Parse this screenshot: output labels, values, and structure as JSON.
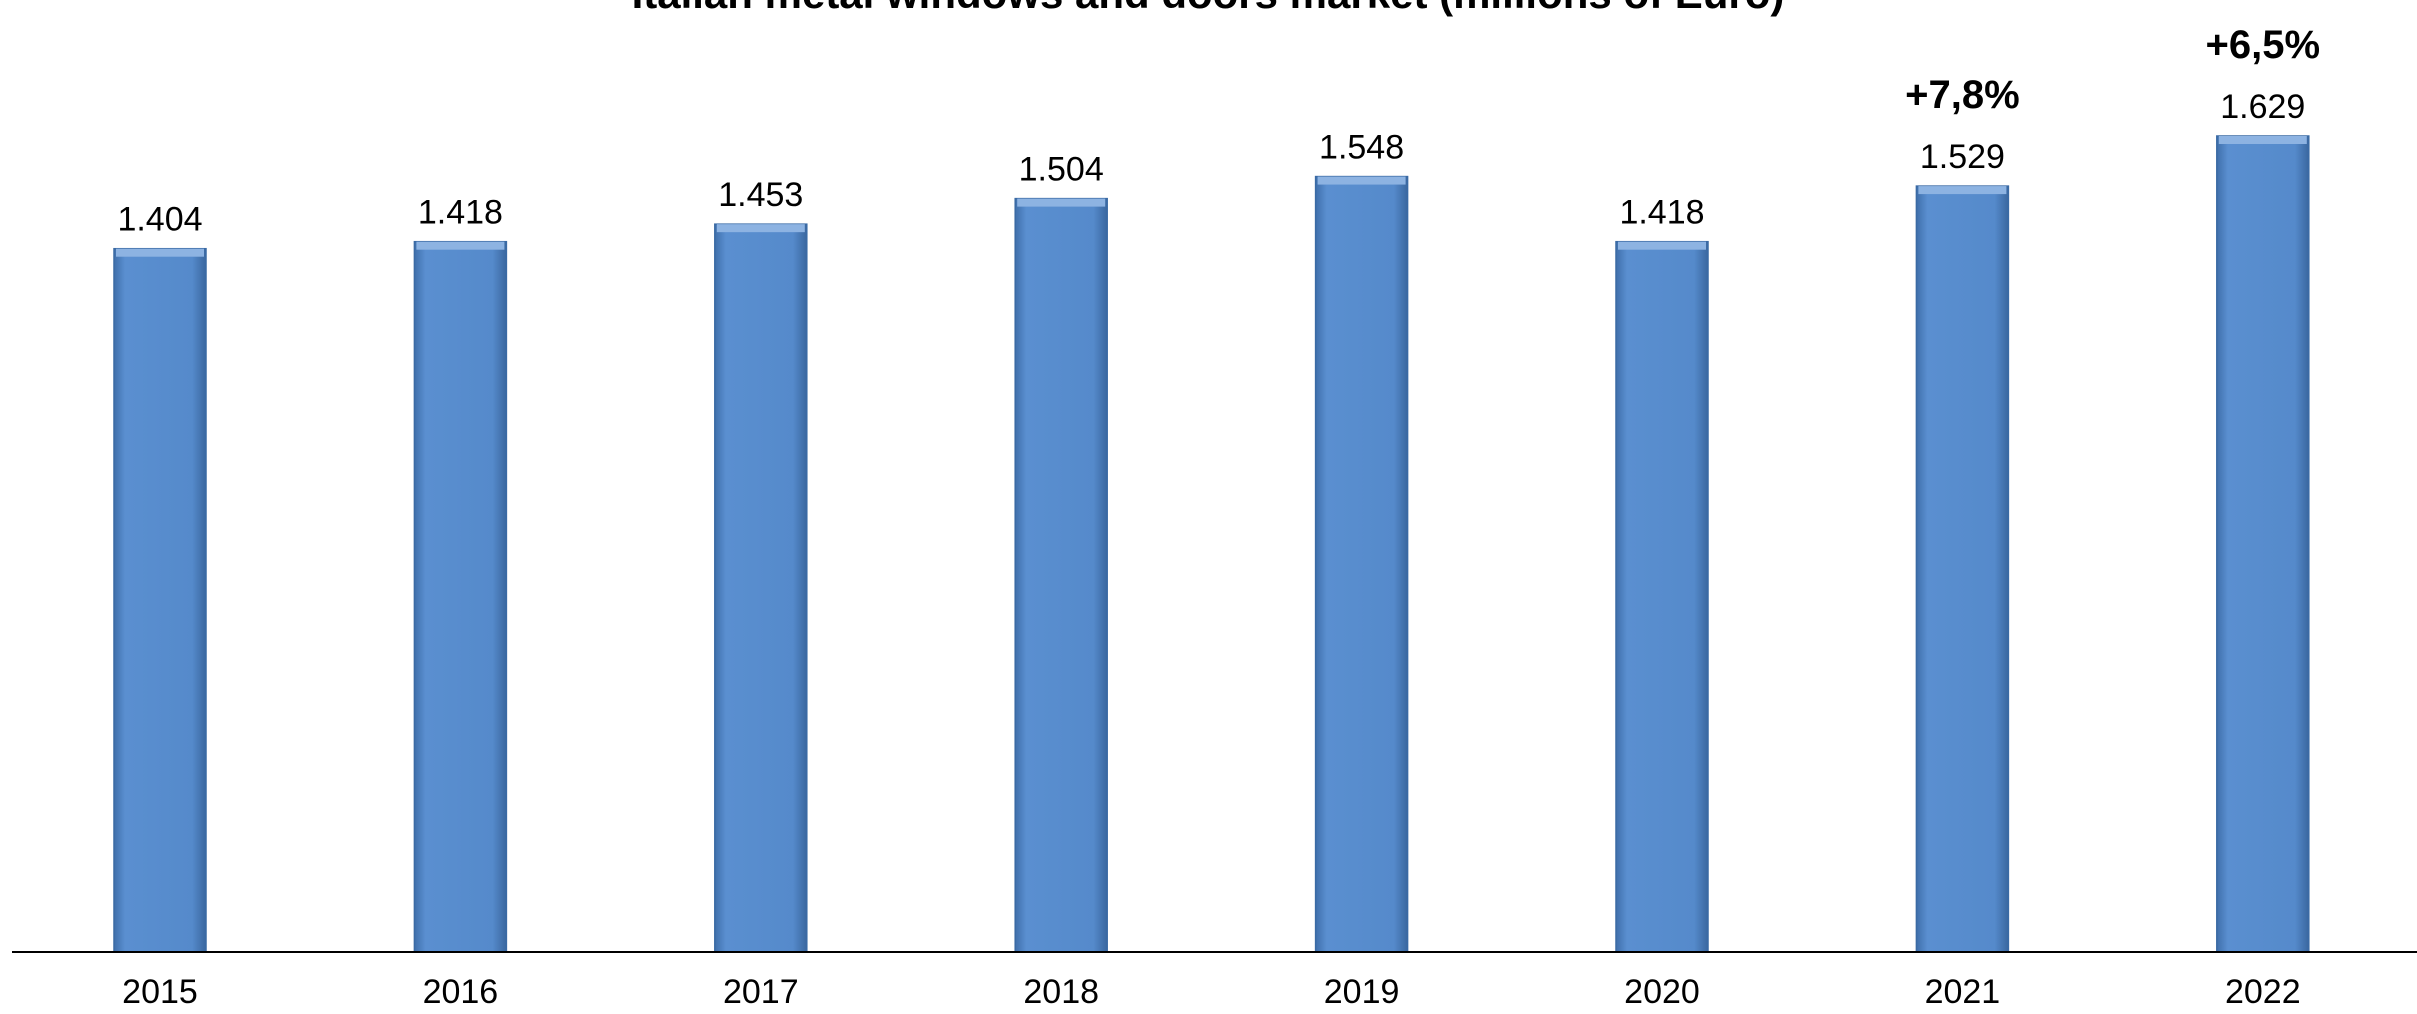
{
  "chart_data": {
    "type": "bar",
    "title": "Italian metal windows and doors market (millions of Euro)",
    "categories": [
      "2015",
      "2016",
      "2017",
      "2018",
      "2019",
      "2020",
      "2021",
      "2022"
    ],
    "values": [
      1404,
      1418,
      1453,
      1504,
      1548,
      1418,
      1529,
      1629
    ],
    "value_labels": [
      "1.404",
      "1.418",
      "1.453",
      "1.504",
      "1.548",
      "1.418",
      "1.529",
      "1.629"
    ],
    "annotations": [
      {
        "category": "2021",
        "text": "+7,8%"
      },
      {
        "category": "2022",
        "text": "+6,5%"
      }
    ],
    "xlabel": "",
    "ylabel": "",
    "ylim": [
      0,
      1629
    ],
    "grid": false,
    "legend": "none",
    "colors": {
      "bar": "#558ACB",
      "bar_edge": "#3A6AA4",
      "bar_highlight": "#8DB3E2",
      "axis": "#000000"
    }
  }
}
